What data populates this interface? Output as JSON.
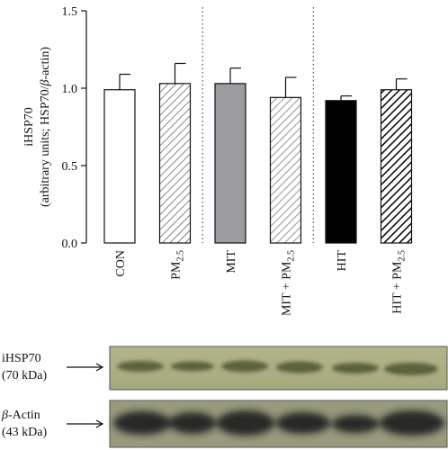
{
  "chart_data": {
    "type": "bar",
    "ylabel_line1": "iHSP70",
    "ylabel_line2_pre": "(arbitrary units; HSP70/",
    "ylabel_line2_beta": "β",
    "ylabel_line2_post": "-actin)",
    "ylim": [
      0,
      1.5
    ],
    "yticks": [
      "0.0",
      "0.5",
      "1.0",
      "1.5"
    ],
    "grid": false,
    "categories": [
      {
        "label": "CON",
        "sub": "",
        "suffix": ""
      },
      {
        "label": "PM",
        "sub": "2.5",
        "suffix": ""
      },
      {
        "label": "MIT",
        "sub": "",
        "suffix": ""
      },
      {
        "label": "MIT + PM",
        "sub": "2.5",
        "suffix": ""
      },
      {
        "label": "HIT",
        "sub": "",
        "suffix": ""
      },
      {
        "label": "HIT + PM",
        "sub": "2.5",
        "suffix": ""
      }
    ],
    "values": [
      0.99,
      1.03,
      1.03,
      0.94,
      0.92,
      0.99
    ],
    "errors": [
      0.1,
      0.13,
      0.1,
      0.13,
      0.03,
      0.07
    ],
    "fills": [
      "white",
      "hatch-light",
      "#9d9da1",
      "hatch-grey",
      "#000000",
      "hatch-dark"
    ],
    "group_separators_after": [
      1,
      3
    ]
  },
  "blots": {
    "hsp70": {
      "name": "iHSP70",
      "size": "(70 kDa)",
      "arrow": "⟶"
    },
    "actin": {
      "name_prefix": "β",
      "name_suffix": "-Actin",
      "size": "(43 kDa)",
      "arrow": "⟶"
    }
  }
}
